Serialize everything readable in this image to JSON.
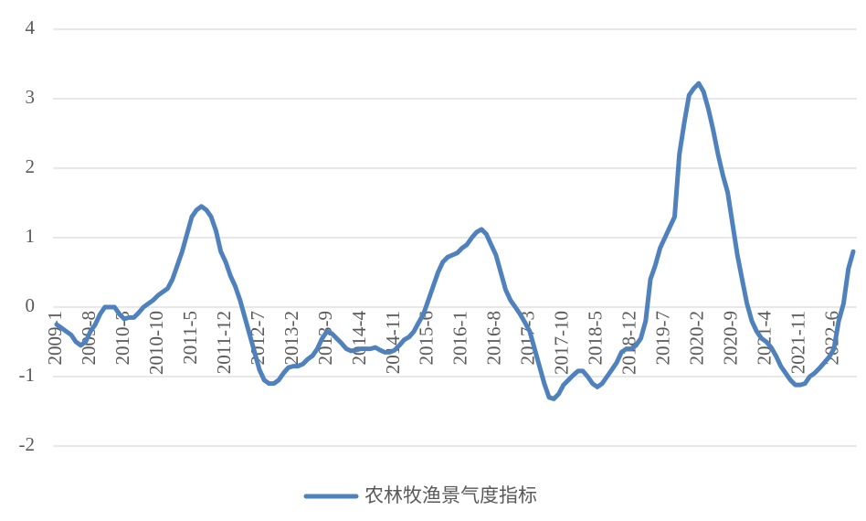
{
  "chart_data": {
    "type": "line",
    "categories": [
      "2009-1",
      null,
      null,
      null,
      null,
      null,
      null,
      "2009-8",
      null,
      null,
      null,
      null,
      null,
      null,
      "2010-3",
      null,
      null,
      null,
      null,
      null,
      null,
      "2010-10",
      null,
      null,
      null,
      null,
      null,
      null,
      "2011-5",
      null,
      null,
      null,
      null,
      null,
      null,
      "2011-12",
      null,
      null,
      null,
      null,
      null,
      null,
      "2012-7",
      null,
      null,
      null,
      null,
      null,
      null,
      "2013-2",
      null,
      null,
      null,
      null,
      null,
      null,
      "2013-9",
      null,
      null,
      null,
      null,
      null,
      null,
      "2014-4",
      null,
      null,
      null,
      null,
      null,
      null,
      "2014-11",
      null,
      null,
      null,
      null,
      null,
      null,
      "2015-6",
      null,
      null,
      null,
      null,
      null,
      null,
      "2016-1",
      null,
      null,
      null,
      null,
      null,
      null,
      "2016-8",
      null,
      null,
      null,
      null,
      null,
      null,
      "2017-3",
      null,
      null,
      null,
      null,
      null,
      null,
      "2017-10",
      null,
      null,
      null,
      null,
      null,
      null,
      "2018-5",
      null,
      null,
      null,
      null,
      null,
      null,
      "2018-12",
      null,
      null,
      null,
      null,
      null,
      null,
      "2019-7",
      null,
      null,
      null,
      null,
      null,
      null,
      "2020-2",
      null,
      null,
      null,
      null,
      null,
      null,
      "2020-9",
      null,
      null,
      null,
      null,
      null,
      null,
      "2021-4",
      null,
      null,
      null,
      null,
      null,
      null,
      "2021-11",
      null,
      null,
      null,
      null,
      null,
      null,
      "2022-6",
      null,
      null,
      null,
      null
    ],
    "series": [
      {
        "name": "农林牧渔景气度指标",
        "color": "#4f81bd",
        "values": [
          -0.25,
          -0.3,
          -0.35,
          -0.4,
          -0.5,
          -0.55,
          -0.5,
          -0.35,
          -0.25,
          -0.1,
          0.0,
          0.0,
          0.0,
          -0.1,
          -0.17,
          -0.15,
          -0.15,
          -0.08,
          0.0,
          0.05,
          0.1,
          0.17,
          0.22,
          0.27,
          0.4,
          0.6,
          0.8,
          1.05,
          1.3,
          1.4,
          1.45,
          1.4,
          1.3,
          1.1,
          0.8,
          0.65,
          0.45,
          0.3,
          0.1,
          -0.15,
          -0.4,
          -0.65,
          -0.9,
          -1.05,
          -1.1,
          -1.1,
          -1.05,
          -0.95,
          -0.87,
          -0.85,
          -0.85,
          -0.82,
          -0.75,
          -0.7,
          -0.6,
          -0.45,
          -0.35,
          -0.38,
          -0.45,
          -0.52,
          -0.6,
          -0.63,
          -0.62,
          -0.6,
          -0.6,
          -0.6,
          -0.58,
          -0.62,
          -0.65,
          -0.65,
          -0.62,
          -0.55,
          -0.47,
          -0.43,
          -0.35,
          -0.22,
          -0.1,
          0.1,
          0.3,
          0.5,
          0.65,
          0.72,
          0.75,
          0.78,
          0.85,
          0.9,
          1.0,
          1.08,
          1.12,
          1.05,
          0.9,
          0.75,
          0.5,
          0.25,
          0.1,
          0.0,
          -0.1,
          -0.22,
          -0.35,
          -0.6,
          -0.85,
          -1.1,
          -1.3,
          -1.32,
          -1.25,
          -1.12,
          -1.05,
          -0.98,
          -0.92,
          -0.92,
          -1.0,
          -1.1,
          -1.15,
          -1.1,
          -1.0,
          -0.9,
          -0.8,
          -0.65,
          -0.6,
          -0.6,
          -0.55,
          -0.45,
          -0.2,
          0.4,
          0.6,
          0.85,
          1.0,
          1.15,
          1.3,
          2.2,
          2.65,
          3.05,
          3.15,
          3.22,
          3.1,
          2.85,
          2.55,
          2.2,
          1.9,
          1.65,
          1.2,
          0.75,
          0.4,
          0.05,
          -0.2,
          -0.35,
          -0.45,
          -0.5,
          -0.58,
          -0.7,
          -0.85,
          -0.95,
          -1.05,
          -1.12,
          -1.12,
          -1.1,
          -1.0,
          -0.95,
          -0.88,
          -0.8,
          -0.72,
          -0.6,
          -0.2,
          0.05,
          0.55,
          0.8
        ]
      }
    ],
    "ylim": [
      -2,
      4
    ],
    "yticks": [
      -2,
      -1,
      0,
      1,
      2,
      3,
      4
    ],
    "grid": true,
    "legend": "bottom"
  }
}
